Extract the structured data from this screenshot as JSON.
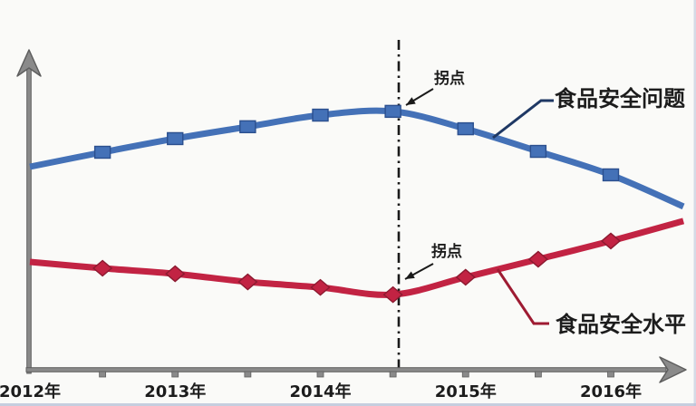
{
  "chart_data": {
    "type": "line",
    "title": "",
    "grid": false,
    "legend_position": "inline-labels-right",
    "x_axis": {
      "tick_labels": [
        "2012年",
        "2013年",
        "2014年",
        "2015年",
        "2016年"
      ],
      "tick_years": [
        2012,
        2013,
        2014,
        2015,
        2016
      ]
    },
    "y_axis": {
      "visible_scale": false,
      "ylim": [
        0,
        110
      ]
    },
    "x": [
      2012,
      2012.5,
      2013,
      2013.5,
      2014,
      2014.5,
      2015,
      2015.5,
      2016,
      2016.5
    ],
    "series": [
      {
        "name": "食品安全问题",
        "marker": "square",
        "color": "#4471B7",
        "marker_border": "#2B4F8E",
        "label_color": "#1F3864",
        "values": [
          70.0,
          75.0,
          79.7,
          83.8,
          87.8,
          89.1,
          83.1,
          75.3,
          67.2,
          56.3
        ]
      },
      {
        "name": "食品安全水平",
        "marker": "diamond",
        "color": "#C22343",
        "marker_border": "#8C1A30",
        "label_color": "#9E1B32",
        "values": [
          37.2,
          35.0,
          33.1,
          30.3,
          28.4,
          25.9,
          31.9,
          38.1,
          44.4,
          51.3
        ]
      }
    ],
    "inflection_year": 2014.5,
    "annotations": [
      {
        "text": "拐点",
        "series": "食品安全问题",
        "at_year": 2014.5
      },
      {
        "text": "拐点",
        "series": "食品安全水平",
        "at_year": 2014.5
      }
    ],
    "colors": {
      "axis": "#8A8A8A",
      "axis_edge": "#5E5E5E",
      "divider_line": "#1A1A1A",
      "annotation_arrow": "#1A1A1A",
      "tick_label": "#1F1F1F",
      "border_strip": "#BCC5DA"
    }
  }
}
